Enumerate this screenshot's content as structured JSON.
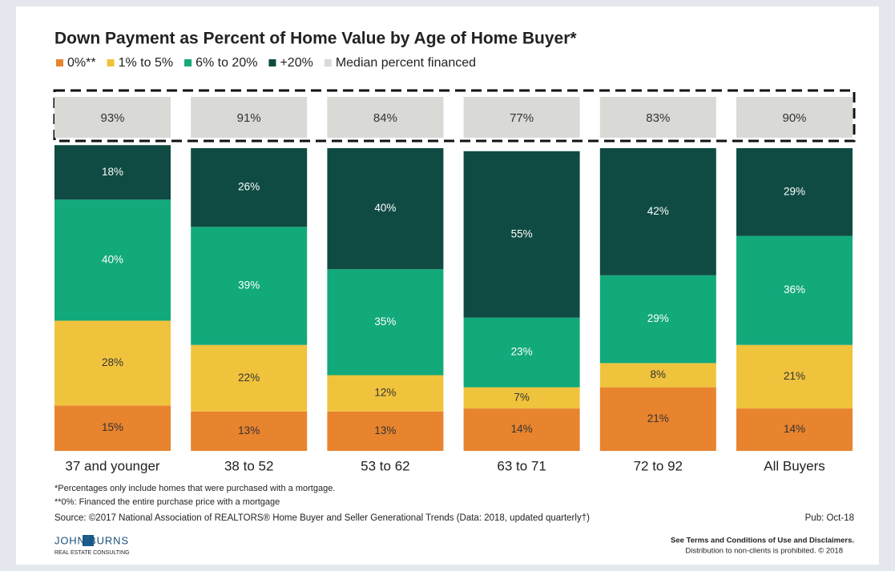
{
  "chart_data": {
    "type": "bar",
    "stacked": true,
    "title": "Down Payment as Percent of Home Value by Age of Home Buyer*",
    "categories": [
      "37 and younger",
      "38 to 52",
      "53 to 62",
      "63 to 71",
      "72 to 92",
      "All Buyers"
    ],
    "ylim": [
      0,
      100
    ],
    "series": [
      {
        "name": "0%**",
        "color": "#e8832e",
        "label_color": "#333333",
        "values": [
          15,
          13,
          13,
          14,
          21,
          14
        ],
        "value_labels": [
          "15%",
          "13%",
          "13%",
          "14%",
          "21%",
          "14%"
        ]
      },
      {
        "name": "1% to 5%",
        "color": "#f0c33d",
        "label_color": "#333333",
        "values": [
          28,
          22,
          12,
          7,
          8,
          21
        ],
        "value_labels": [
          "28%",
          "22%",
          "12%",
          "7%",
          "8%",
          "21%"
        ]
      },
      {
        "name": "6% to 20%",
        "color": "#12a97b",
        "label_color": "#ffffff",
        "values": [
          40,
          39,
          35,
          23,
          29,
          36
        ],
        "value_labels": [
          "40%",
          "39%",
          "35%",
          "23%",
          "29%",
          "36%"
        ]
      },
      {
        "name": "+20%",
        "color": "#0f4b43",
        "label_color": "#ffffff",
        "values": [
          18,
          26,
          40,
          55,
          42,
          29
        ],
        "value_labels": [
          "18%",
          "26%",
          "40%",
          "55%",
          "42%",
          "29%"
        ]
      }
    ],
    "median": {
      "name": "Median percent financed",
      "color": "#d9d9d5",
      "label_color": "#333333",
      "values": [
        93,
        91,
        84,
        77,
        83,
        90
      ],
      "value_labels": [
        "93%",
        "91%",
        "84%",
        "77%",
        "83%",
        "90%"
      ]
    },
    "notes": [
      "*Percentages only include homes that were purchased with a mortgage.",
      "**0%: Financed the entire purchase price with a mortgage"
    ],
    "source": "Source: ©2017 National Association of REALTORS® Home Buyer and Seller Generational Trends (Data: 2018, updated quarterly†)",
    "pub": "Pub: Oct-18"
  },
  "footer": {
    "logo": "JOHN BURNS",
    "logo_sub": "REAL ESTATE CONSULTING",
    "disclaimer": [
      "See Terms and Conditions of Use and Disclaimers.",
      "Distribution to non-clients is prohibited. © 2018"
    ]
  }
}
